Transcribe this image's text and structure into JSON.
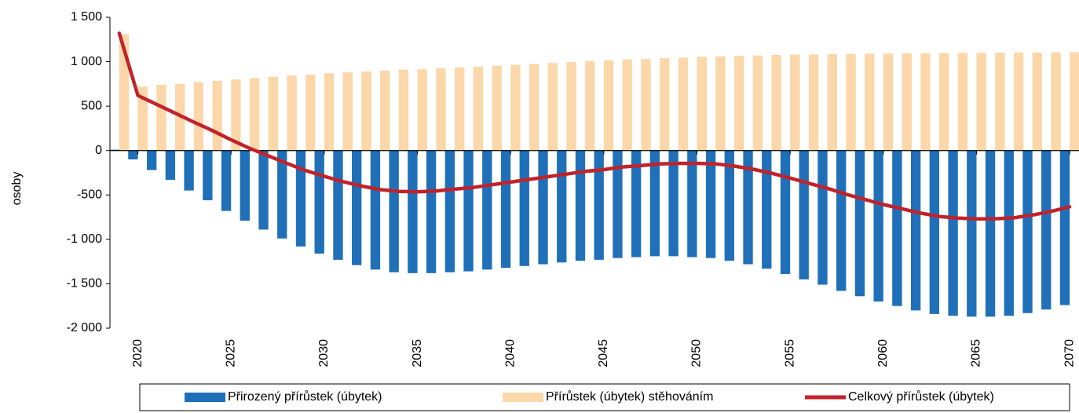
{
  "chart_data": {
    "type": "bar_line",
    "y_label": "osoby",
    "x": [
      2019,
      2020,
      2021,
      2022,
      2023,
      2024,
      2025,
      2026,
      2027,
      2028,
      2029,
      2030,
      2031,
      2032,
      2033,
      2034,
      2035,
      2036,
      2037,
      2038,
      2039,
      2040,
      2041,
      2042,
      2043,
      2044,
      2045,
      2046,
      2047,
      2048,
      2049,
      2050,
      2051,
      2052,
      2053,
      2054,
      2055,
      2056,
      2057,
      2058,
      2059,
      2060,
      2061,
      2062,
      2063,
      2064,
      2065,
      2066,
      2067,
      2068,
      2069,
      2070
    ],
    "series": [
      {
        "name": "Přirozený přírůstek (úbytek)",
        "type": "bar",
        "color": "#1f70b8",
        "values": [
          10,
          -100,
          -220,
          -330,
          -450,
          -560,
          -680,
          -790,
          -890,
          -990,
          -1080,
          -1160,
          -1230,
          -1290,
          -1340,
          -1370,
          -1380,
          -1380,
          -1370,
          -1360,
          -1340,
          -1320,
          -1300,
          -1280,
          -1260,
          -1240,
          -1230,
          -1210,
          -1200,
          -1190,
          -1190,
          -1200,
          -1210,
          -1240,
          -1280,
          -1330,
          -1390,
          -1450,
          -1510,
          -1580,
          -1640,
          -1700,
          -1750,
          -1800,
          -1840,
          -1860,
          -1870,
          -1870,
          -1860,
          -1830,
          -1790,
          -1740
        ]
      },
      {
        "name": "Přírůstek (úbytek) stěhováním",
        "type": "bar",
        "color": "#fbd7a9",
        "values": [
          1310,
          720,
          740,
          750,
          770,
          785,
          800,
          815,
          830,
          845,
          855,
          870,
          880,
          890,
          900,
          910,
          915,
          925,
          935,
          945,
          955,
          965,
          975,
          985,
          995,
          1005,
          1015,
          1025,
          1030,
          1040,
          1045,
          1055,
          1060,
          1065,
          1070,
          1075,
          1080,
          1082,
          1085,
          1088,
          1090,
          1092,
          1094,
          1096,
          1098,
          1100,
          1101,
          1102,
          1103,
          1104,
          1105,
          1106
        ]
      },
      {
        "name": "Celkový přírůstek (úbytek)",
        "type": "line",
        "color": "#c0232b",
        "values": [
          1320,
          620,
          520,
          420,
          320,
          225,
          120,
          25,
          -60,
          -145,
          -225,
          -290,
          -350,
          -400,
          -440,
          -460,
          -465,
          -455,
          -435,
          -415,
          -385,
          -355,
          -325,
          -295,
          -265,
          -235,
          -215,
          -185,
          -170,
          -150,
          -145,
          -145,
          -150,
          -175,
          -210,
          -255,
          -310,
          -368,
          -425,
          -492,
          -550,
          -608,
          -656,
          -704,
          -742,
          -760,
          -769,
          -768,
          -757,
          -726,
          -685,
          -634
        ]
      }
    ],
    "xlim": [
      2018.5,
      2070.5
    ],
    "xticks": [
      2020,
      2025,
      2030,
      2035,
      2040,
      2045,
      2050,
      2055,
      2060,
      2065,
      2070
    ],
    "ylim": [
      -2000,
      1500
    ],
    "yticks": [
      {
        "value": -2000,
        "label": "-2 000"
      },
      {
        "value": -1500,
        "label": "-1 500"
      },
      {
        "value": -1000,
        "label": "-1 000"
      },
      -500,
      0,
      500,
      {
        "value": 1000,
        "label": "1 000"
      },
      {
        "value": 1500,
        "label": "1 500"
      }
    ],
    "legend": "bottom"
  }
}
